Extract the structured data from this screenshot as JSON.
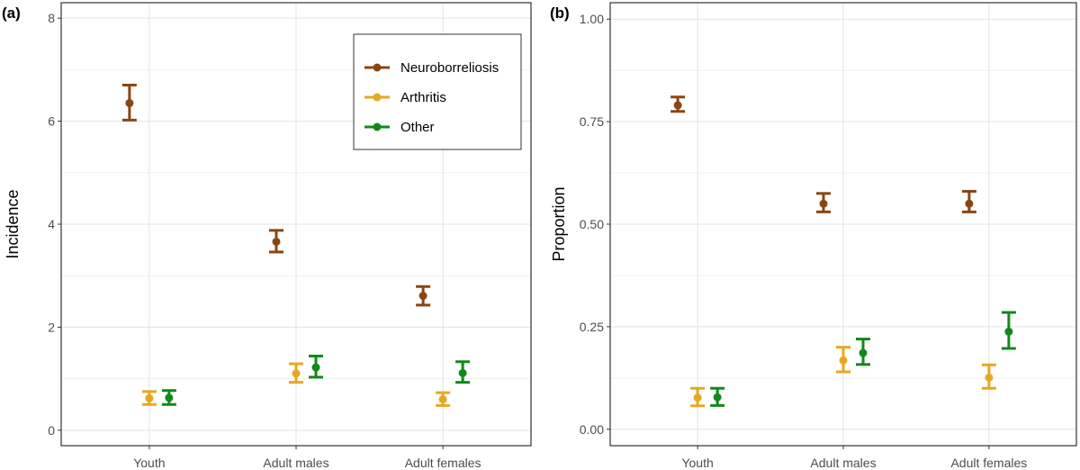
{
  "chart_data": [
    {
      "type": "scatter",
      "panel_label": "(a)",
      "title": "",
      "xlabel": "",
      "ylabel": "Incidence",
      "categories": [
        "Youth",
        "Adult males",
        "Adult females"
      ],
      "ylim": [
        -0.3,
        8.3
      ],
      "yticks": [
        0,
        2,
        4,
        6,
        8
      ],
      "ytick_labels": [
        "0",
        "2",
        "4",
        "6",
        "8"
      ],
      "grid": true,
      "legend": {
        "position": "top-right",
        "entries": [
          "Neuroborreliosis",
          "Arthritis",
          "Other"
        ]
      },
      "series": [
        {
          "name": "Neuroborreliosis",
          "color": "#8B4513",
          "values": [
            6.35,
            3.66,
            2.61
          ],
          "lower": [
            6.02,
            3.46,
            2.43
          ],
          "upper": [
            6.7,
            3.88,
            2.79
          ]
        },
        {
          "name": "Arthritis",
          "color": "#E6A823",
          "values": [
            0.62,
            1.1,
            0.6
          ],
          "lower": [
            0.5,
            0.93,
            0.48
          ],
          "upper": [
            0.75,
            1.29,
            0.73
          ]
        },
        {
          "name": "Other",
          "color": "#11891A",
          "values": [
            0.63,
            1.22,
            1.11
          ],
          "lower": [
            0.5,
            1.03,
            0.93
          ],
          "upper": [
            0.77,
            1.44,
            1.33
          ]
        }
      ]
    },
    {
      "type": "scatter",
      "panel_label": "(b)",
      "title": "",
      "xlabel": "",
      "ylabel": "Proportion",
      "categories": [
        "Youth",
        "Adult males",
        "Adult females"
      ],
      "ylim": [
        -0.04,
        1.04
      ],
      "yticks": [
        0,
        0.25,
        0.5,
        0.75,
        1.0
      ],
      "ytick_labels": [
        "0.00",
        "0.25",
        "0.50",
        "0.75",
        "1.00"
      ],
      "grid": true,
      "series": [
        {
          "name": "Neuroborreliosis",
          "color": "#8B4513",
          "values": [
            0.79,
            0.55,
            0.55
          ],
          "lower": [
            0.775,
            0.53,
            0.53
          ],
          "upper": [
            0.81,
            0.575,
            0.58
          ]
        },
        {
          "name": "Arthritis",
          "color": "#E6A823",
          "values": [
            0.077,
            0.168,
            0.126
          ],
          "lower": [
            0.057,
            0.14,
            0.1
          ],
          "upper": [
            0.1,
            0.2,
            0.157
          ]
        },
        {
          "name": "Other",
          "color": "#11891A",
          "values": [
            0.078,
            0.186,
            0.238
          ],
          "lower": [
            0.058,
            0.158,
            0.197
          ],
          "upper": [
            0.1,
            0.22,
            0.285
          ]
        }
      ]
    }
  ]
}
